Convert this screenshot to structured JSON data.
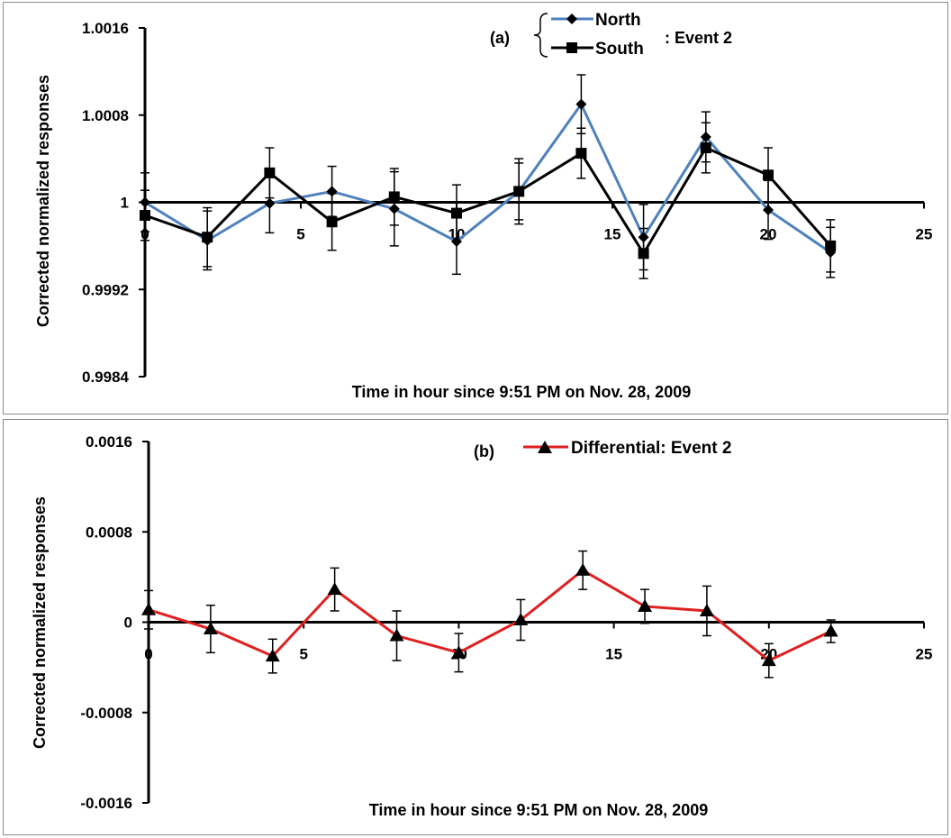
{
  "chart_data": [
    {
      "type": "line",
      "panel_label": "(a)",
      "xlabel": "Time in hour since 9:51 PM on Nov. 28, 2009",
      "ylabel": "Corrected normalized responses",
      "xlim": [
        0,
        25
      ],
      "ylim": [
        0.9984,
        1.0016
      ],
      "axis_cross_y": 1.0,
      "x_ticks": [
        0,
        5,
        10,
        15,
        20,
        25
      ],
      "y_ticks": [
        1.0016,
        1.0008,
        1,
        0.9992,
        0.9984
      ],
      "x_tick_labels": [
        "0",
        "5",
        "10",
        "15",
        "20",
        "25"
      ],
      "y_tick_labels": [
        "1.0016",
        "1.0008",
        "1",
        "0.9992",
        "0.9984"
      ],
      "legend_suffix": ": Event 2",
      "series": [
        {
          "name": "North",
          "color": "#4f81bd",
          "marker": "diamond",
          "x": [
            0,
            2,
            4,
            6,
            8,
            10,
            12,
            14,
            16,
            18,
            20,
            22
          ],
          "values": [
            1.0,
            0.99965,
            0.99999,
            1.0001,
            0.99994,
            0.99964,
            1.0001,
            1.0009,
            0.99968,
            1.0006,
            0.99993,
            0.99954
          ],
          "errors": [
            0.00027,
            0.00027,
            0.00027,
            0.00023,
            0.00034,
            0.0003,
            0.0003,
            0.00027,
            0.0003,
            0.00023,
            0.00027,
            0.00023
          ]
        },
        {
          "name": "South",
          "color": "#000000",
          "marker": "square",
          "x": [
            0,
            2,
            4,
            6,
            8,
            10,
            12,
            14,
            16,
            18,
            20,
            22
          ],
          "values": [
            0.99988,
            0.99968,
            1.00027,
            0.99982,
            1.00005,
            0.9999,
            1.0001,
            1.00045,
            0.99953,
            1.0005,
            1.00025,
            0.9996
          ],
          "errors": [
            0.00023,
            0.00027,
            0.00023,
            0.00026,
            0.00026,
            0.00026,
            0.00026,
            0.00023,
            0.00023,
            0.00023,
            0.00025,
            0.00024
          ]
        }
      ]
    },
    {
      "type": "line",
      "panel_label": "(b)",
      "xlabel": "Time in hour since 9:51 PM on Nov. 28, 2009",
      "ylabel": "Corrected normalized responses",
      "xlim": [
        0,
        25
      ],
      "ylim": [
        -0.0016,
        0.0016
      ],
      "axis_cross_y": 0,
      "x_ticks": [
        0,
        5,
        10,
        15,
        20,
        25
      ],
      "y_ticks": [
        0.0016,
        0.0008,
        0,
        -0.0008,
        -0.0016
      ],
      "x_tick_labels": [
        "0",
        "5",
        "10",
        "15",
        "20",
        "25"
      ],
      "y_tick_labels": [
        "0.0016",
        "0.0008",
        "0",
        "-0.0008",
        "-0.0016"
      ],
      "series": [
        {
          "name": "Differential: Event 2",
          "color": "#e02020",
          "marker": "triangle",
          "x": [
            0,
            2,
            4,
            6,
            8,
            10,
            12,
            14,
            16,
            18,
            20,
            22
          ],
          "values": [
            0.00011,
            -6e-05,
            -0.0003,
            0.00029,
            -0.00012,
            -0.00027,
            2e-05,
            0.00046,
            0.00014,
            0.0001,
            -0.00034,
            -8e-05
          ],
          "errors": [
            0.00017,
            0.00021,
            0.00015,
            0.00019,
            0.00022,
            0.00017,
            0.00018,
            0.00017,
            0.00015,
            0.00022,
            0.00015,
            0.0001
          ]
        }
      ]
    }
  ]
}
